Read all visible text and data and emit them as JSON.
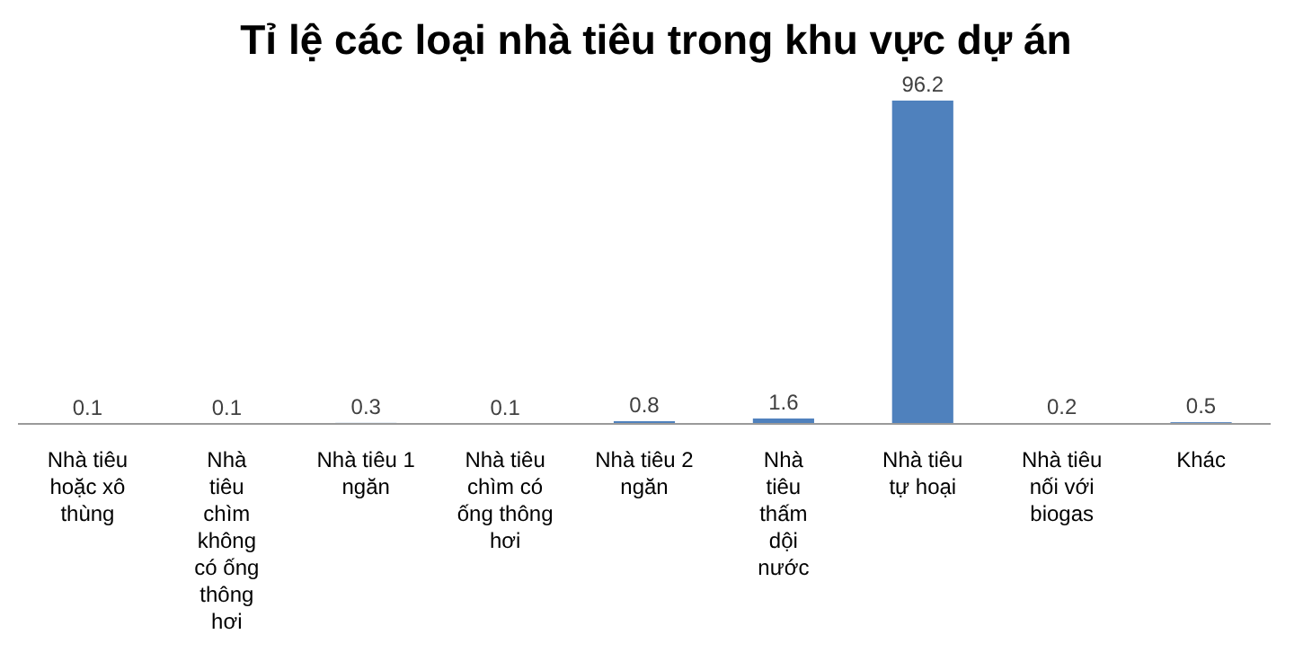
{
  "chart_data": {
    "type": "bar",
    "title": "Tỉ lệ các loại nhà tiêu trong khu vực dự án",
    "categories": [
      "Nhà tiêu hoặc xô thùng",
      "Nhà tiêu chìm không có ống thông hơi",
      "Nhà tiêu 1 ngăn",
      "Nhà tiêu chìm có ống thông hơi",
      "Nhà tiêu 2 ngăn",
      "Nhà tiêu thấm dội nước",
      "Nhà tiêu tự hoại",
      "Nhà tiêu nối với biogas",
      "Khác"
    ],
    "values": [
      0.1,
      0.1,
      0.3,
      0.1,
      0.8,
      1.6,
      96.2,
      0.2,
      0.5
    ],
    "color": "#4f81bd",
    "data_labels": true
  }
}
